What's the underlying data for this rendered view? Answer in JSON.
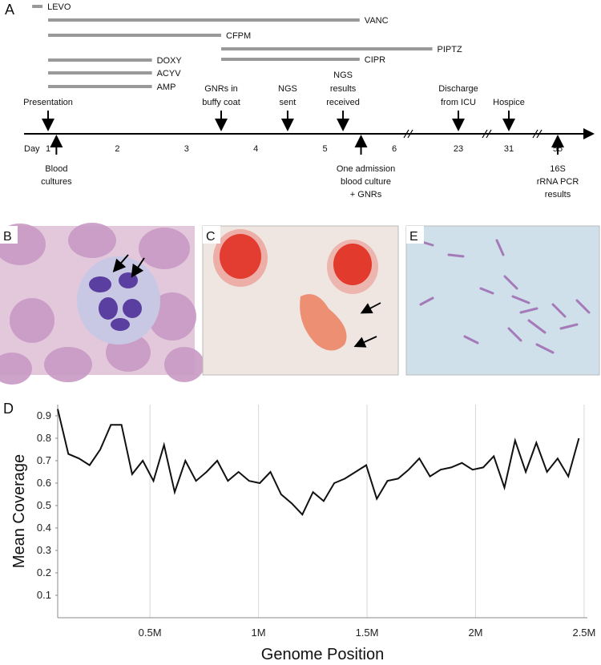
{
  "panel_a": {
    "label": "A",
    "day_label": "Day",
    "days": [
      1,
      2,
      3,
      4,
      5,
      6
    ],
    "later_days": [
      23,
      31,
      55
    ],
    "drugs": [
      {
        "name": "LEVO",
        "start": 0.77,
        "end": 0.92
      },
      {
        "name": "VANC",
        "start": 1,
        "end": 5.5
      },
      {
        "name": "CFPM",
        "start": 1,
        "end": 3.5
      },
      {
        "name": "PIPTZ",
        "start": 3.5,
        "end": 6.55
      },
      {
        "name": "CIPR",
        "start": 3.5,
        "end": 5.5
      },
      {
        "name": "DOXY",
        "start": 1,
        "end": 2.5
      },
      {
        "name": "ACYV",
        "start": 1,
        "end": 2.5
      },
      {
        "name": "AMP",
        "start": 1,
        "end": 2.5
      }
    ],
    "events": [
      {
        "lines": [
          "Presentation"
        ],
        "day": 1,
        "side": "above"
      },
      {
        "lines": [
          "Blood",
          "cultures"
        ],
        "day": 1.12,
        "side": "below"
      },
      {
        "lines": [
          "GNRs in",
          "buffy coat"
        ],
        "day": 3.5,
        "side": "above"
      },
      {
        "lines": [
          "NGS",
          "sent"
        ],
        "day": 4.46,
        "side": "above"
      },
      {
        "lines": [
          "NGS",
          "results",
          "received"
        ],
        "day": 5.26,
        "side": "above"
      },
      {
        "lines": [
          "One admission",
          "blood culture",
          "+ GNRs"
        ],
        "day": 5.52,
        "side": "below"
      },
      {
        "lines": [
          "Discharge",
          "from ICU"
        ],
        "day": 23,
        "side": "above"
      },
      {
        "lines": [
          "Hospice"
        ],
        "day": 31,
        "side": "above"
      },
      {
        "lines": [
          "16S",
          "rRNA PCR",
          "results"
        ],
        "day": 55,
        "side": "below"
      }
    ]
  },
  "panels": {
    "b": "B",
    "c": "C",
    "e": "E"
  },
  "chart_data": {
    "type": "line",
    "label": "D",
    "x_label": "Genome Position",
    "y_label": "Mean Coverage",
    "x": [
      75000,
      124000,
      173000,
      222000,
      271000,
      320000,
      369000,
      418000,
      467000,
      516000,
      565000,
      614000,
      663000,
      712000,
      761000,
      810000,
      859000,
      908000,
      957000,
      1006000,
      1055000,
      1104000,
      1153000,
      1202000,
      1251000,
      1300000,
      1349000,
      1398000,
      1447000,
      1496000,
      1545000,
      1594000,
      1643000,
      1692000,
      1741000,
      1790000,
      1839000,
      1888000,
      1937000,
      1986000,
      2035000,
      2084000,
      2133000,
      2182000,
      2231000,
      2280000,
      2329000,
      2378000,
      2427000,
      2476000
    ],
    "series": [
      {
        "name": "Mean Coverage",
        "color": "#111111",
        "values": [
          0.93,
          0.73,
          0.71,
          0.68,
          0.75,
          0.86,
          0.86,
          0.64,
          0.7,
          0.61,
          0.77,
          0.56,
          0.7,
          0.61,
          0.65,
          0.7,
          0.61,
          0.65,
          0.61,
          0.6,
          0.65,
          0.55,
          0.51,
          0.46,
          0.56,
          0.52,
          0.6,
          0.62,
          0.65,
          0.68,
          0.53,
          0.61,
          0.62,
          0.66,
          0.71,
          0.63,
          0.66,
          0.67,
          0.69,
          0.66,
          0.67,
          0.72,
          0.58,
          0.79,
          0.65,
          0.78,
          0.65,
          0.71,
          0.63,
          0.8
        ]
      }
    ],
    "xlim": [
      75000,
      2515000
    ],
    "ylim": [
      0,
      0.95
    ],
    "xticks": [
      {
        "value": 500000,
        "label": "0.5M"
      },
      {
        "value": 1000000,
        "label": "1M"
      },
      {
        "value": 1500000,
        "label": "1.5M"
      },
      {
        "value": 2000000,
        "label": "2M"
      },
      {
        "value": 2500000,
        "label": "2.5M"
      }
    ],
    "yticks": [
      0.1,
      0.2,
      0.3,
      0.4,
      0.5,
      0.6,
      0.7,
      0.8,
      0.9
    ],
    "grid": "x"
  }
}
